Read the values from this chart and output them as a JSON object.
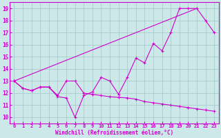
{
  "xlabel": "Windchill (Refroidissement éolien,°C)",
  "bg_color": "#cce8e8",
  "grid_color": "#aacccc",
  "line_color": "#cc00cc",
  "xlim": [
    -0.5,
    23.5
  ],
  "ylim": [
    9.5,
    19.5
  ],
  "xticks": [
    0,
    1,
    2,
    3,
    4,
    5,
    6,
    7,
    8,
    9,
    10,
    11,
    12,
    13,
    14,
    15,
    16,
    17,
    18,
    19,
    20,
    21,
    22,
    23
  ],
  "yticks": [
    10,
    11,
    12,
    13,
    14,
    15,
    16,
    17,
    18,
    19
  ],
  "curve1_x": [
    0,
    1,
    2,
    3,
    4,
    5,
    6,
    7,
    8,
    9,
    10,
    11,
    12,
    13,
    14,
    15,
    16,
    17,
    18,
    19,
    20,
    21,
    22,
    23
  ],
  "curve1_y": [
    13.0,
    12.4,
    12.2,
    12.5,
    12.5,
    11.7,
    11.6,
    10.0,
    11.8,
    12.1,
    13.3,
    13.0,
    11.9,
    13.3,
    14.9,
    14.5,
    16.1,
    15.5,
    17.0,
    19.0,
    19.0,
    19.0,
    18.0,
    17.0
  ],
  "curve2_x": [
    0,
    21
  ],
  "curve2_y": [
    13.0,
    19.0
  ],
  "curve3_x": [
    0,
    1,
    2,
    3,
    4,
    5,
    6,
    7,
    8,
    9,
    10,
    11,
    12,
    13,
    14,
    15,
    16,
    17,
    18,
    19,
    20,
    21,
    22,
    23
  ],
  "curve3_y": [
    13.0,
    12.4,
    12.2,
    12.5,
    12.5,
    11.8,
    13.0,
    13.0,
    12.0,
    11.9,
    11.8,
    11.7,
    11.65,
    11.6,
    11.5,
    11.3,
    11.2,
    11.1,
    11.0,
    10.9,
    10.8,
    10.7,
    10.6,
    10.5
  ]
}
